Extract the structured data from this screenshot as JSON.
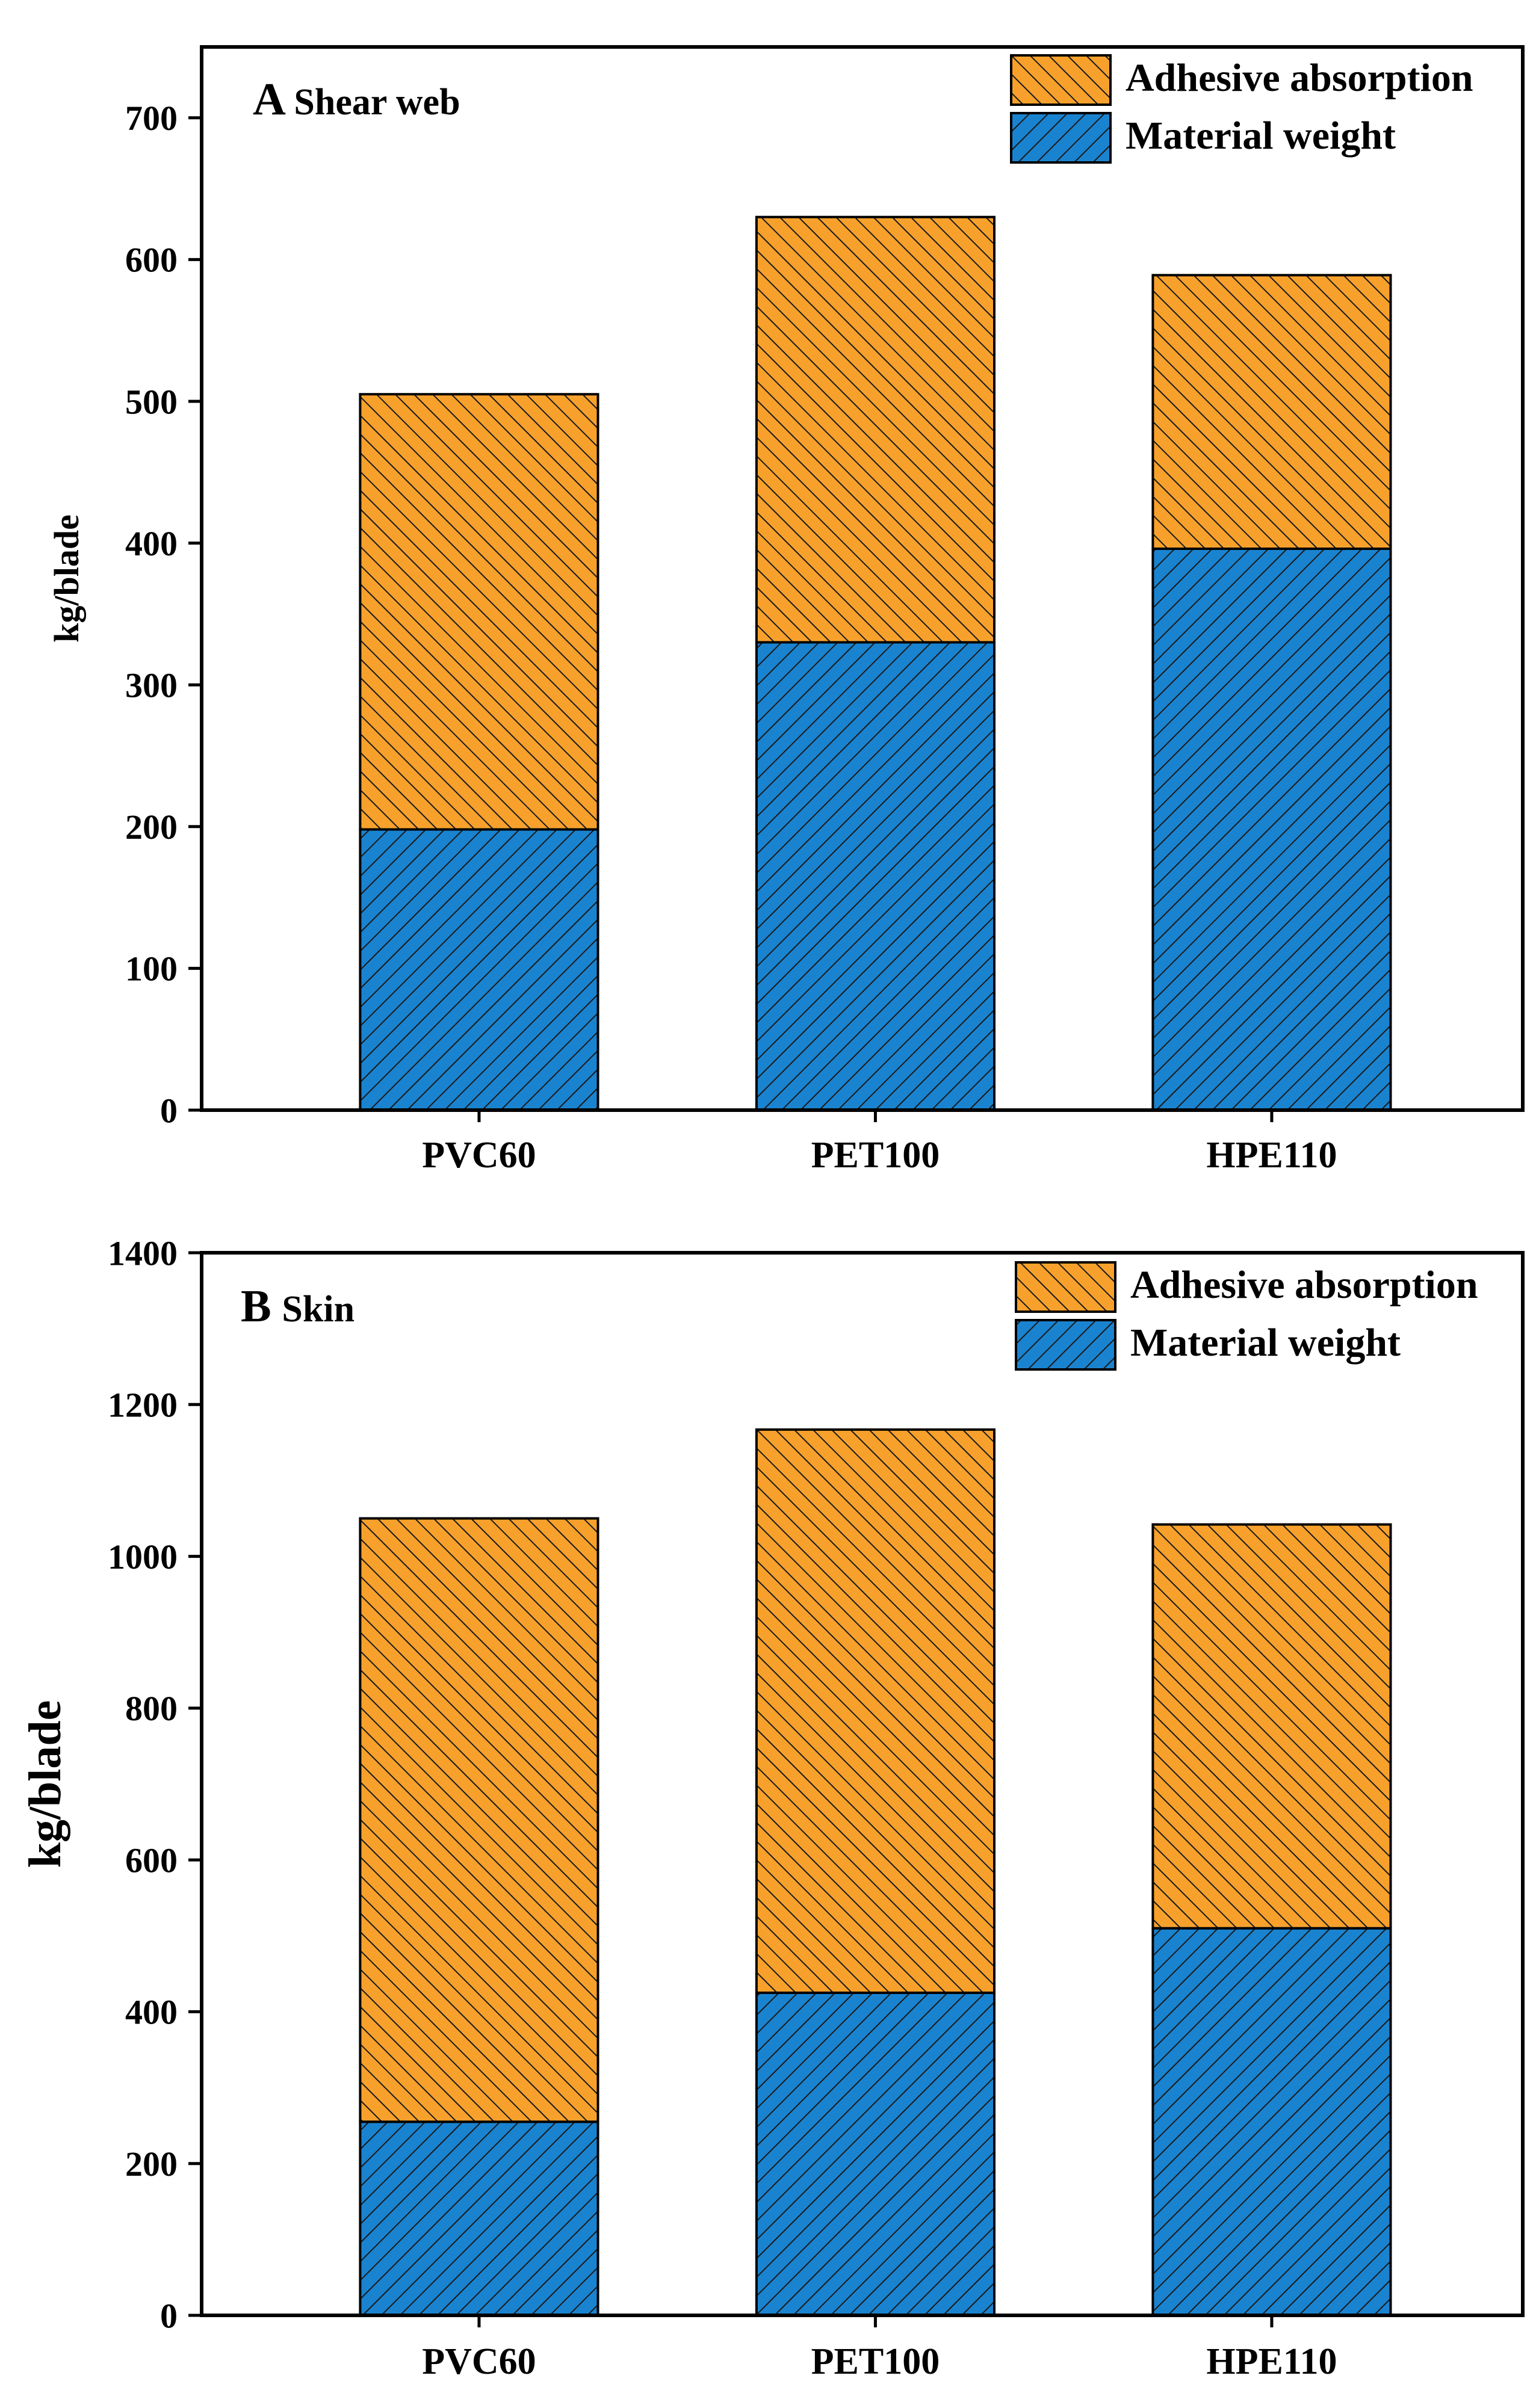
{
  "colors": {
    "adhesive": "#F7A12C",
    "material": "#1A83D0",
    "hatch": "#1a1a1a",
    "axis": "#000000"
  },
  "chart_data": [
    {
      "type": "bar",
      "stacked": true,
      "panel_letter": "A",
      "panel_name": "Shear web",
      "ylabel": "kg/blade",
      "categories": [
        "PVC60",
        "PET100",
        "HPE110"
      ],
      "series": [
        {
          "name": "Material weight",
          "values": [
            198,
            330,
            396
          ]
        },
        {
          "name": "Adhesive absorption",
          "values": [
            307,
            300,
            193
          ]
        }
      ],
      "ylim": [
        0,
        750
      ],
      "yticks": [
        0,
        100,
        200,
        300,
        400,
        500,
        600,
        700
      ],
      "legend": "top-right",
      "grid": false
    },
    {
      "type": "bar",
      "stacked": true,
      "panel_letter": "B",
      "panel_name": "Skin",
      "ylabel": "kg/blade",
      "categories": [
        "PVC60",
        "PET100",
        "HPE110"
      ],
      "series": [
        {
          "name": "Material weight",
          "values": [
            255,
            425,
            510
          ]
        },
        {
          "name": "Adhesive absorption",
          "values": [
            795,
            742,
            532
          ]
        }
      ],
      "ylim": [
        0,
        1400
      ],
      "yticks": [
        0,
        200,
        400,
        600,
        800,
        1000,
        1200,
        1400
      ],
      "legend": "top-right",
      "grid": false
    }
  ]
}
